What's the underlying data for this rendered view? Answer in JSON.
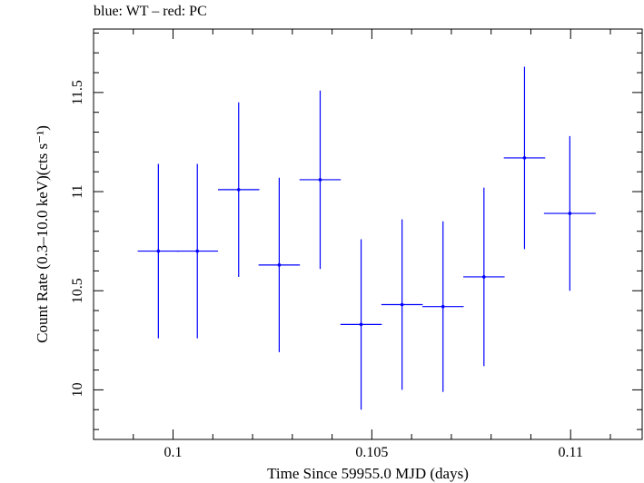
{
  "chart_data": {
    "type": "scatter",
    "title": "blue: WT – red: PC",
    "xlabel": "Time Since 59955.0 MJD (days)",
    "ylabel": "Count Rate (0.3–10.0 keV)(cts s⁻¹)",
    "xlim": [
      0.098,
      0.1118
    ],
    "ylim": [
      9.75,
      11.82
    ],
    "x_ticks": [
      0.1,
      0.105,
      0.11
    ],
    "x_tick_labels": [
      "0.1",
      "0.105",
      "0.11"
    ],
    "y_ticks": [
      10,
      10.5,
      11,
      11.5
    ],
    "y_tick_labels": [
      "10",
      "10.5",
      "11",
      "11.5"
    ],
    "grid": false,
    "series": [
      {
        "name": "WT",
        "color": "#0000ff",
        "points": [
          {
            "x": 0.09963,
            "xerr": 0.00052,
            "y": 10.7,
            "yerr": 0.44
          },
          {
            "x": 0.10061,
            "xerr": 0.00052,
            "y": 10.7,
            "yerr": 0.44
          },
          {
            "x": 0.10165,
            "xerr": 0.00052,
            "y": 11.01,
            "yerr": 0.44
          },
          {
            "x": 0.10267,
            "xerr": 0.00052,
            "y": 10.63,
            "yerr": 0.44
          },
          {
            "x": 0.1037,
            "xerr": 0.00052,
            "y": 11.06,
            "yerr": 0.45
          },
          {
            "x": 0.10473,
            "xerr": 0.00052,
            "y": 10.33,
            "yerr": 0.43
          },
          {
            "x": 0.10576,
            "xerr": 0.00052,
            "y": 10.43,
            "yerr": 0.43
          },
          {
            "x": 0.10679,
            "xerr": 0.00052,
            "y": 10.42,
            "yerr": 0.43
          },
          {
            "x": 0.10782,
            "xerr": 0.00052,
            "y": 10.57,
            "yerr": 0.45
          },
          {
            "x": 0.10884,
            "xerr": 0.00052,
            "y": 11.17,
            "yerr": 0.46
          },
          {
            "x": 0.10998,
            "xerr": 0.00065,
            "y": 10.89,
            "yerr": 0.39
          }
        ]
      }
    ]
  }
}
